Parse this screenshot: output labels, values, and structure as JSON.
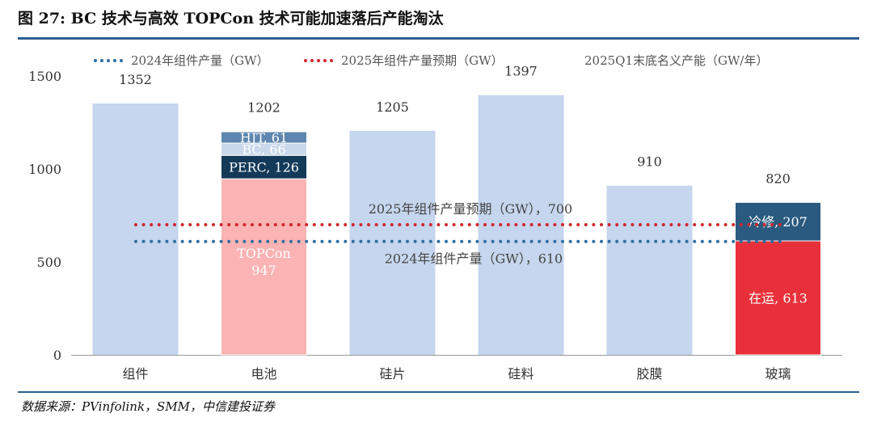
{
  "title": "图 27: BC 技术与高效 TOPCon 技术可能加速落后产能淘汰",
  "source": "数据来源：PVinfolink，SMM，中信建投证券",
  "chart_data": {
    "type": "bar",
    "title": "图 27: BC 技术与高效 TOPCon 技术可能加速落后产能淘汰",
    "categories": [
      "组件",
      "电池",
      "硅片",
      "硅料",
      "胶膜",
      "玻璃"
    ],
    "ylim": [
      0,
      1500
    ],
    "yticks": [
      0,
      500,
      1000,
      1500
    ],
    "grid": false,
    "legend_position": "top",
    "legend": [
      {
        "label": "2024年组件产量（GW）",
        "style": "dotted-line",
        "color": "#2e6ea3"
      },
      {
        "label": "2025年组件产量预期（GW）",
        "style": "dotted-line",
        "color": "#d0262c"
      },
      {
        "label": "2025Q1末底名义产能（GW/年）",
        "style": "bar",
        "color": "#c5d6ee"
      }
    ],
    "series": [
      {
        "name": "2025Q1末底名义产能（GW/年）",
        "values": [
          1352,
          1202,
          1205,
          1397,
          910,
          820
        ]
      }
    ],
    "total_labels": [
      "1352",
      "1202",
      "1205",
      "1397",
      "910",
      "820"
    ],
    "stacks": [
      {
        "category": "电池",
        "segments": [
          {
            "name": "TOPCon",
            "value": 947,
            "label": "TOPCon\n947",
            "color": "#fbb3b3",
            "text_color": "#ffffff"
          },
          {
            "name": "PERC",
            "value": 126,
            "label": "PERC, 126",
            "color": "#143a5a",
            "text_color": "#ffffff"
          },
          {
            "name": "BC",
            "value": 66,
            "label": "BC, 66",
            "color": "#c9d8ea",
            "text_color": "#ffffff"
          },
          {
            "name": "HJT",
            "value": 61,
            "label": "HJT, 61",
            "color": "#5f86ae",
            "text_color": "#ffffff"
          }
        ]
      },
      {
        "category": "玻璃",
        "segments": [
          {
            "name": "在运",
            "value": 613,
            "label": "在运, 613",
            "color": "#e8303a",
            "text_color": "#ffffff"
          },
          {
            "name": "冷修",
            "value": 207,
            "label": "冷修, 207",
            "color": "#2a5a80",
            "text_color": "#ffffff"
          }
        ]
      }
    ],
    "reference_lines": [
      {
        "name": "2024年组件产量（GW）",
        "value": 610,
        "color": "#2e6ea3",
        "label": "2024年组件产量（GW），610"
      },
      {
        "name": "2025年组件产量预期（GW）",
        "value": 700,
        "color": "#d0262c",
        "label": "2025年组件产量预期（GW），700"
      }
    ]
  }
}
